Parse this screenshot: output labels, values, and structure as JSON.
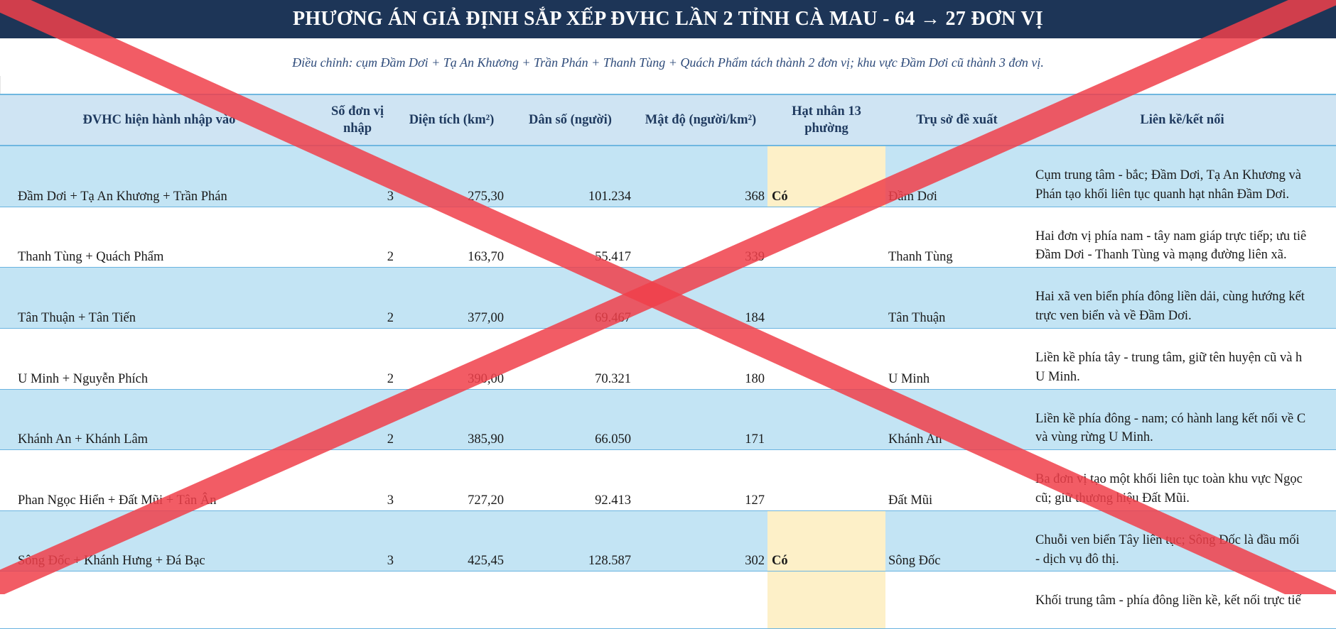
{
  "title": "PHƯƠNG ÁN GIẢ ĐỊNH SẮP XẾP ĐVHC LẦN 2 TỈNH CÀ MAU - 64 → 27 ĐƠN VỊ",
  "subtitle": "Điều chỉnh: cụm Đầm Dơi + Tạ An Khương + Trần Phán + Thanh Tùng + Quách Phẩm tách thành 2 đơn vị; khu vực Đầm Dơi cũ thành 3 đơn vị.",
  "headers": {
    "name": "ĐVHC hiện hành nhập vào",
    "count": "Số đơn vị nhập",
    "area": "Diện tích (km²)",
    "population": "Dân số (người)",
    "density": "Mật độ (người/km²)",
    "core": "Hạt nhân 13 phường",
    "office": "Trụ sở đề xuất",
    "link": "Liên kề/kết nối"
  },
  "rows": [
    {
      "name": "Đầm Dơi + Tạ An Khương + Trần Phán",
      "count": "3",
      "area": "275,30",
      "population": "101.234",
      "density": "368",
      "core": "Có",
      "office": "Đầm Dơi",
      "link1": "Cụm trung tâm - bắc; Đầm Dơi, Tạ An Khương và",
      "link2": "Phán tạo khối liên tục quanh hạt nhân Đầm Dơi."
    },
    {
      "name": "Thanh Tùng + Quách Phẩm",
      "count": "2",
      "area": "163,70",
      "population": "55.417",
      "density": "339",
      "core": "",
      "office": "Thanh Tùng",
      "link1": "Hai đơn vị phía nam - tây nam giáp trực tiếp; ưu tiê",
      "link2": "Đầm Dơi - Thanh Tùng và mạng đường liên xã."
    },
    {
      "name": "Tân Thuận + Tân Tiến",
      "count": "2",
      "area": "377,00",
      "population": "69.467",
      "density": "184",
      "core": "",
      "office": "Tân Thuận",
      "link1": "Hai xã ven biển phía đông liền dải, cùng hướng kết",
      "link2": "trực ven biển và về Đầm Dơi."
    },
    {
      "name": "U Minh + Nguyễn Phích",
      "count": "2",
      "area": "390,00",
      "population": "70.321",
      "density": "180",
      "core": "",
      "office": "U Minh",
      "link1": "Liền kề phía tây - trung tâm, giữ tên huyện cũ và h",
      "link2": "U Minh."
    },
    {
      "name": "Khánh An + Khánh Lâm",
      "count": "2",
      "area": "385,90",
      "population": "66.050",
      "density": "171",
      "core": "",
      "office": "Khánh An",
      "link1": "Liền kề phía đông - nam; có hành lang kết nối về C",
      "link2": "và vùng rừng U Minh."
    },
    {
      "name": "Phan Ngọc Hiển + Đất Mũi + Tân Ân",
      "count": "3",
      "area": "727,20",
      "population": "92.413",
      "density": "127",
      "core": "",
      "office": "Đất Mũi",
      "link1": "Ba đơn vị tạo một khối liên tục toàn khu vực Ngọc",
      "link2": "cũ; giữ thương hiệu Đất Mũi."
    },
    {
      "name": "Sông Đốc + Khánh Hưng + Đá Bạc",
      "count": "3",
      "area": "425,45",
      "population": "128.587",
      "density": "302",
      "core": "Có",
      "office": "Sông Đốc",
      "link1": "Chuỗi ven biển Tây liên tục; Sông Đốc là đầu mối",
      "link2": "- dịch vụ đô thị."
    },
    {
      "name": "",
      "count": "",
      "area": "",
      "population": "",
      "density": "",
      "core": "",
      "office": "",
      "link1": "Khối trung tâm - phía đông liền kề, kết nối trực tiế",
      "link2": ""
    }
  ],
  "colors": {
    "title_bg": "#1d3557",
    "header_bg": "#cfe4f3",
    "band_blue": "#c3e4f4",
    "core_highlight": "#fdf0c8",
    "cross": "#f0404a"
  }
}
